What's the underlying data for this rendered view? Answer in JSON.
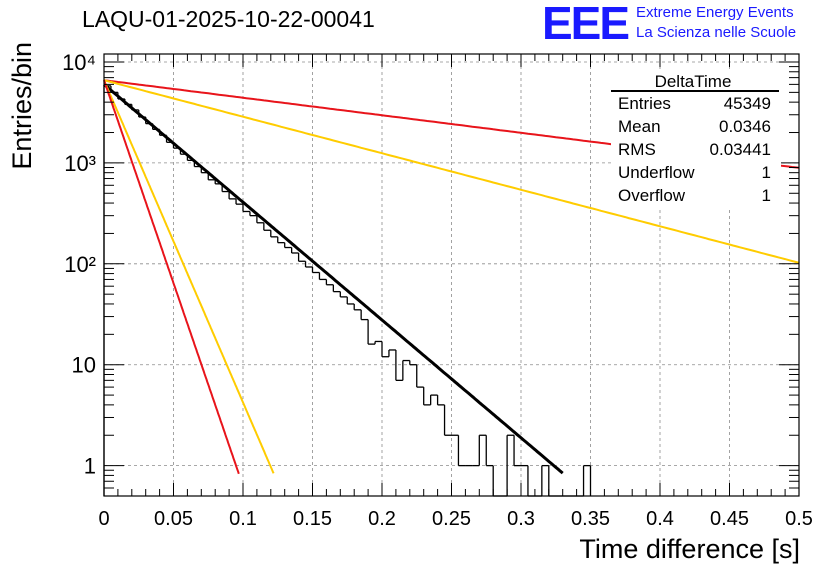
{
  "header": {
    "title": "LAQU-01-2025-10-22-00041",
    "logo_text": "EEE",
    "logo_line1": "Extreme Energy Events",
    "logo_line2": "La Scienza nelle Scuole"
  },
  "stats": {
    "name": "DeltaTime",
    "rows": [
      {
        "label": "Entries",
        "value": "45349"
      },
      {
        "label": "Mean",
        "value": "0.0346"
      },
      {
        "label": "RMS",
        "value": "0.03441"
      },
      {
        "label": "Underflow",
        "value": "1"
      },
      {
        "label": "Overflow",
        "value": "1"
      }
    ]
  },
  "colors": {
    "red": "#e8141b",
    "yellow": "#ffcc00",
    "black": "#000000",
    "grid": "#8c8c8c",
    "brand": "#1a1aff"
  },
  "chart_data": {
    "type": "line",
    "title": "LAQU-01-2025-10-22-00041",
    "xlabel": "Time difference [s]",
    "ylabel": "Entries/bin",
    "xlim": [
      0,
      0.5
    ],
    "ylim": [
      0.5,
      12000
    ],
    "yscale": "log",
    "grid": true,
    "xticks": [
      0,
      0.05,
      0.1,
      0.15,
      0.2,
      0.25,
      0.3,
      0.35,
      0.4,
      0.45,
      0.5
    ],
    "xtick_labels": [
      "0",
      "0.05",
      "0.1",
      "0.15",
      "0.2",
      "0.25",
      "0.3",
      "0.35",
      "0.4",
      "0.45",
      "0.5"
    ],
    "yticks": [
      1,
      10,
      100,
      1000,
      10000
    ],
    "ytick_labels": [
      "1",
      "10",
      "10²",
      "10³",
      "10⁴"
    ],
    "histogram": {
      "name": "DeltaTime",
      "bin_width": 0.005,
      "bin_centers": [
        0.0025,
        0.0075,
        0.0125,
        0.0175,
        0.0225,
        0.0275,
        0.0325,
        0.0375,
        0.0425,
        0.0475,
        0.0525,
        0.0575,
        0.0625,
        0.0675,
        0.0725,
        0.0775,
        0.0825,
        0.0875,
        0.0925,
        0.0975,
        0.1025,
        0.1075,
        0.1125,
        0.1175,
        0.1225,
        0.1275,
        0.1325,
        0.1375,
        0.1425,
        0.1475,
        0.1525,
        0.1575,
        0.1625,
        0.1675,
        0.1725,
        0.1775,
        0.1825,
        0.1875,
        0.1925,
        0.1975,
        0.2025,
        0.2075,
        0.2125,
        0.2175,
        0.2225,
        0.2275,
        0.2325,
        0.2375,
        0.2425,
        0.2475,
        0.2525,
        0.2575,
        0.2625,
        0.2675,
        0.2725,
        0.2775,
        0.2825,
        0.2875,
        0.2925,
        0.2975,
        0.3025,
        0.3075,
        0.3125,
        0.3175,
        0.3225,
        0.3275,
        0.3325,
        0.3375,
        0.3425,
        0.3475
      ],
      "counts": [
        5800,
        5000,
        4300,
        3800,
        3350,
        2850,
        2450,
        2150,
        1880,
        1600,
        1400,
        1220,
        1060,
        920,
        800,
        680,
        620,
        520,
        440,
        390,
        330,
        300,
        255,
        215,
        185,
        162,
        145,
        128,
        106,
        93,
        82,
        70,
        62,
        53,
        47,
        40,
        35,
        28,
        16,
        17,
        12,
        14,
        7,
        11,
        10,
        6,
        4,
        5,
        4,
        2,
        2,
        1,
        1,
        1,
        2,
        1,
        0,
        0,
        2,
        1,
        1,
        0,
        0,
        1,
        0,
        0,
        0,
        0,
        0,
        1
      ]
    },
    "series": [
      {
        "name": "exponential fit",
        "color": "#000000",
        "y0": 6000,
        "tau": 0.0372,
        "x_end": 0.33
      },
      {
        "name": "red slow",
        "color": "#e8141b",
        "y0": 6600,
        "tau": 0.25,
        "x_end": 0.5
      },
      {
        "name": "yellow slow",
        "color": "#ffcc00",
        "y0": 6600,
        "tau": 0.12,
        "x_end": 0.5
      },
      {
        "name": "yellow fast",
        "color": "#ffcc00",
        "y0": 6600,
        "tau": 0.0136,
        "x_end": 0.122
      },
      {
        "name": "red fast",
        "color": "#e8141b",
        "y0": 6600,
        "tau": 0.0108,
        "x_end": 0.097
      }
    ]
  }
}
